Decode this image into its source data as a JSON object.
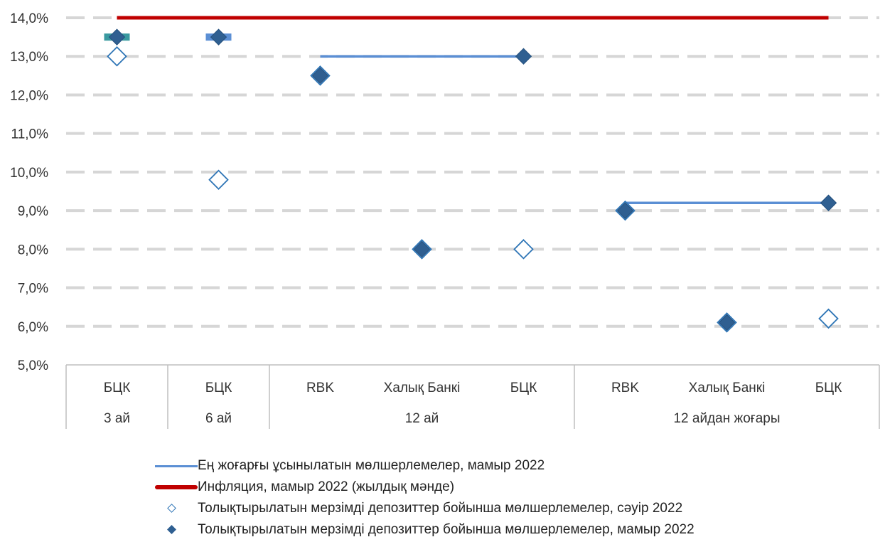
{
  "chart_data": {
    "type": "scatter",
    "y_axis": {
      "min": 5.0,
      "max": 14.0,
      "step": 1.0,
      "tick_labels": [
        "5,0%",
        "6,0%",
        "7,0%",
        "8,0%",
        "9,0%",
        "10,0%",
        "11,0%",
        "12,0%",
        "13,0%",
        "14,0%"
      ],
      "grid": "dashed"
    },
    "categories": [
      "БЦК",
      "БЦК",
      "RBK",
      "Халық Банкі",
      "БЦК",
      "RBK",
      "Халық Банкі",
      "БЦК"
    ],
    "groups": [
      {
        "label": "3 ай",
        "span": 1
      },
      {
        "label": "6 ай",
        "span": 1
      },
      {
        "label": "12 ай",
        "span": 3
      },
      {
        "label": "12 айдан жоғары",
        "span": 3
      }
    ],
    "series": [
      {
        "name": "Ең жоғарғы ұсынылатын мөлшерлемелер, мамыр 2022",
        "kind": "line",
        "color": "#5B8FD4",
        "segments": [
          {
            "from_index": 0,
            "to_index": 0,
            "value": 13.5,
            "color": "#3A9AA0"
          },
          {
            "from_index": 1,
            "to_index": 1,
            "value": 13.5
          },
          {
            "from_index": 2,
            "to_index": 4,
            "value": 13.0
          },
          {
            "from_index": 5,
            "to_index": 7,
            "value": 9.2
          }
        ]
      },
      {
        "name": "Инфляция, мамыр 2022 (жылдық мәнде)",
        "kind": "line",
        "color": "#C00000",
        "from_index": 0,
        "to_index": 7,
        "value": 14.0
      },
      {
        "name": "Толықтырылатын мерзімді депозиттер бойынша мөлшерлемелер, сәуір 2022",
        "kind": "marker-open",
        "color": "#2E75B6",
        "values": [
          13.0,
          9.8,
          12.5,
          8.0,
          8.0,
          9.0,
          6.1,
          6.2
        ]
      },
      {
        "name": "Толықтырылатын мерзімді депозиттер бойынша мөлшерлемелер, мамыр 2022",
        "kind": "marker-filled",
        "color": "#2F5F91",
        "values": [
          13.5,
          13.5,
          12.5,
          8.0,
          13.0,
          9.0,
          6.1,
          9.2
        ]
      }
    ]
  }
}
